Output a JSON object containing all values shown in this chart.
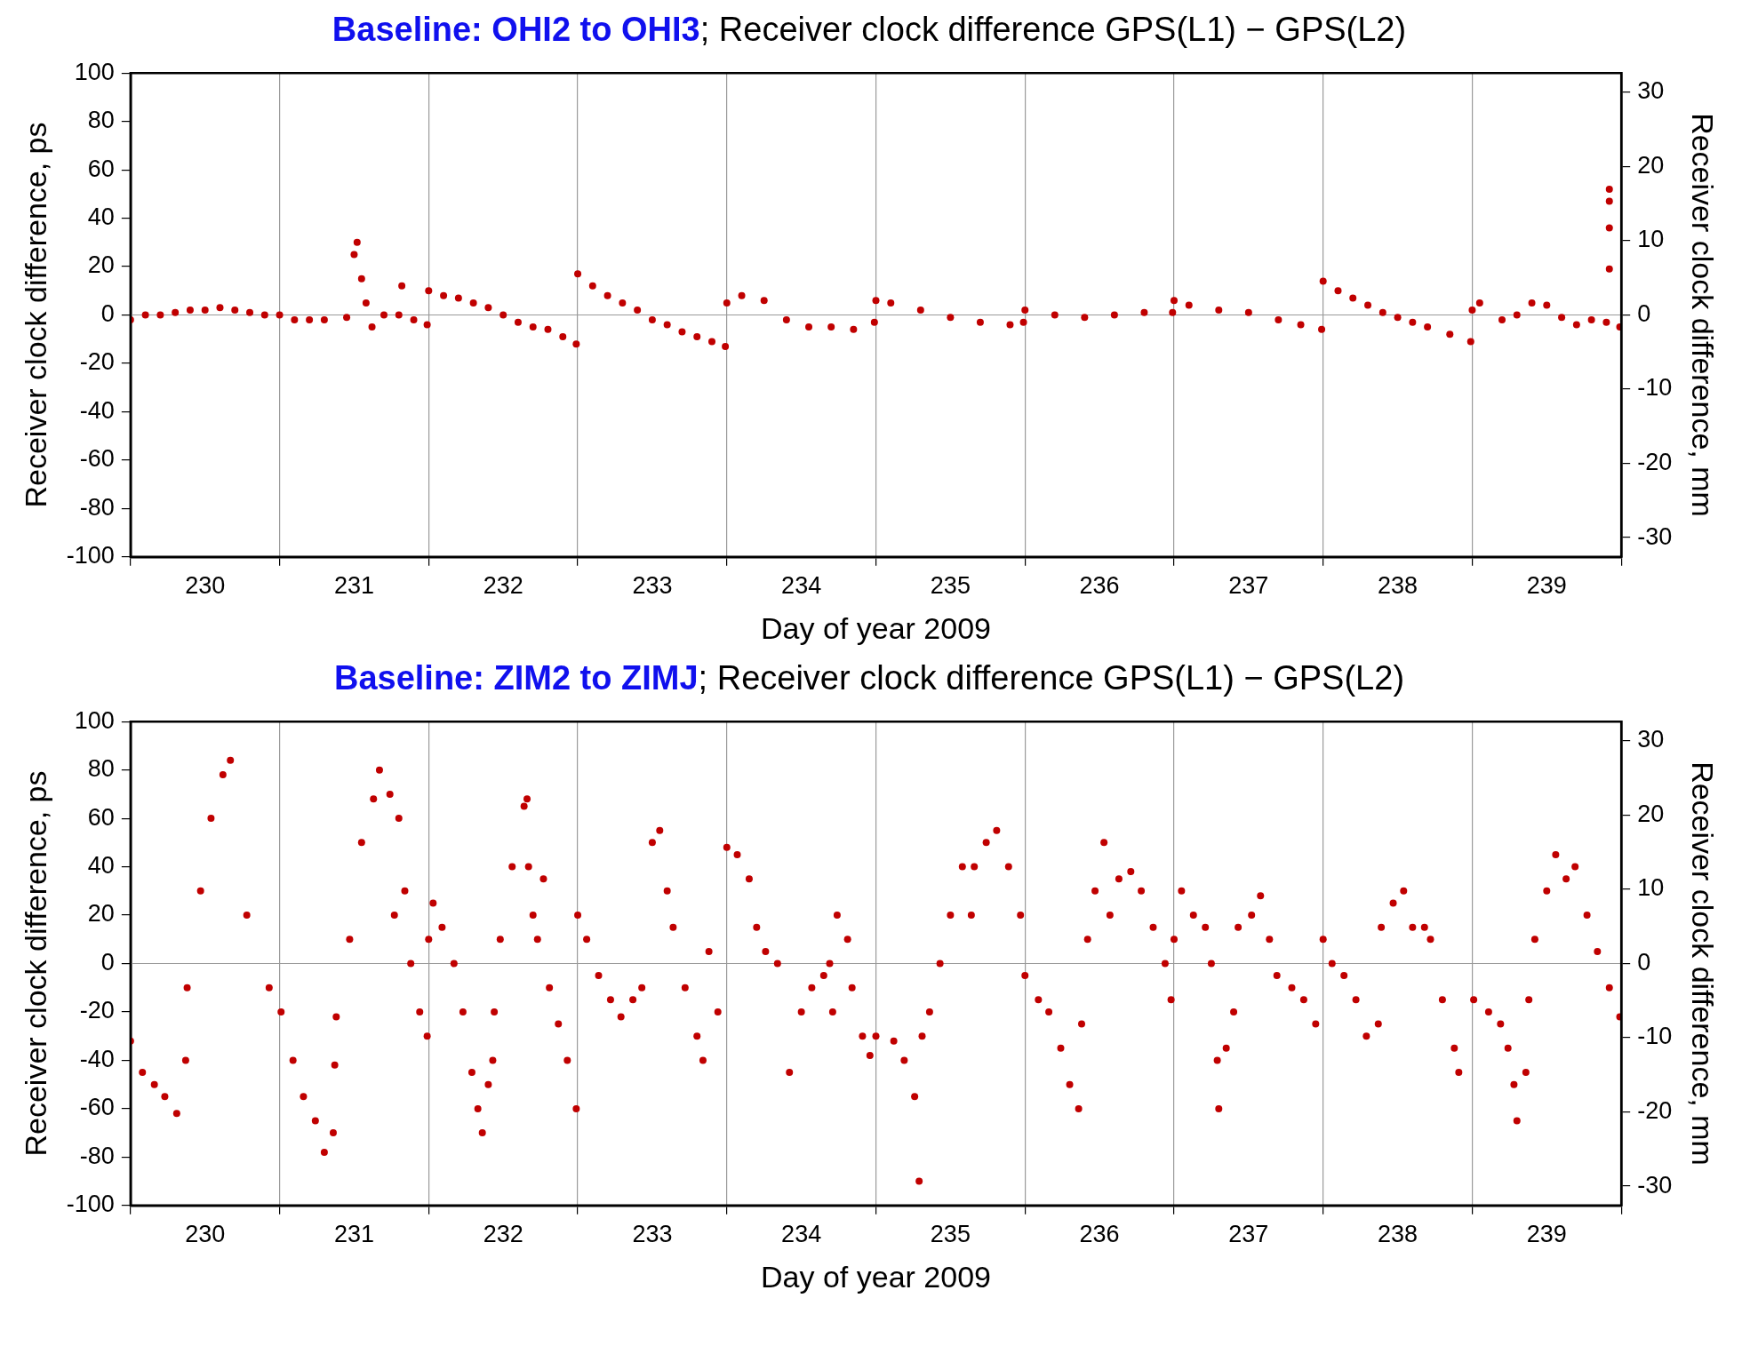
{
  "chart_data": [
    {
      "type": "scatter",
      "title": "Baseline: OHI2 to OHI3; Receiver clock difference GPS(L1) − GPS(L2)",
      "xlabel": "Day of year 2009",
      "ylabel": "Receiver clock difference, ps",
      "y2label": "Receiver clock difference, mm",
      "xlim": [
        230,
        240
      ],
      "xticks": [
        {
          "value": 230,
          "label": null
        },
        {
          "value": 230.5,
          "label": "230"
        },
        {
          "value": 231,
          "label": null
        },
        {
          "value": 231.5,
          "label": "231"
        },
        {
          "value": 232,
          "label": null
        },
        {
          "value": 232.5,
          "label": "232"
        },
        {
          "value": 233,
          "label": null
        },
        {
          "value": 233.5,
          "label": "233"
        },
        {
          "value": 234,
          "label": null
        },
        {
          "value": 234.5,
          "label": "234"
        },
        {
          "value": 235,
          "label": null
        },
        {
          "value": 235.5,
          "label": "235"
        },
        {
          "value": 236,
          "label": null
        },
        {
          "value": 236.5,
          "label": "236"
        },
        {
          "value": 237,
          "label": null
        },
        {
          "value": 237.5,
          "label": "237"
        },
        {
          "value": 238,
          "label": null
        },
        {
          "value": 238.5,
          "label": "238"
        },
        {
          "value": 239,
          "label": null
        },
        {
          "value": 239.5,
          "label": "239"
        },
        {
          "value": 240,
          "label": null
        }
      ],
      "ylim": [
        -100,
        100
      ],
      "yticks": [
        -100,
        -80,
        -60,
        -40,
        -20,
        0,
        20,
        40,
        60,
        80,
        100
      ],
      "y2lim": [
        -32.6,
        32.6
      ],
      "y2ticks": [
        -30,
        -20,
        -10,
        0,
        10,
        20,
        30
      ],
      "grid": "x",
      "marker": "circle",
      "ref_lines": [
        {
          "axis": "y",
          "value": 0,
          "color": "#999999"
        }
      ],
      "series": [
        {
          "color": "#c00000",
          "x": [
            230.0,
            230.1,
            230.2,
            230.3,
            230.4,
            230.5,
            230.6,
            230.7,
            230.8,
            230.9,
            231.0,
            231.1,
            231.2,
            231.3,
            231.45,
            231.5,
            231.52,
            231.55,
            231.58,
            231.62,
            231.7,
            231.8,
            231.82,
            231.9,
            231.99,
            232.0,
            232.1,
            232.2,
            232.3,
            232.4,
            232.5,
            232.6,
            232.7,
            232.8,
            232.9,
            232.99,
            233.0,
            233.1,
            233.2,
            233.3,
            233.4,
            233.5,
            233.6,
            233.7,
            233.8,
            233.9,
            233.99,
            234.0,
            234.1,
            234.25,
            234.4,
            234.55,
            234.7,
            234.85,
            234.99,
            235.0,
            235.1,
            235.3,
            235.5,
            235.7,
            235.9,
            235.99,
            236.0,
            236.2,
            236.4,
            236.6,
            236.8,
            236.99,
            237.0,
            237.1,
            237.3,
            237.5,
            237.7,
            237.85,
            237.99,
            238.0,
            238.1,
            238.2,
            238.3,
            238.4,
            238.5,
            238.6,
            238.7,
            238.85,
            238.99,
            239.0,
            239.05,
            239.2,
            239.3,
            239.4,
            239.5,
            239.6,
            239.7,
            239.8,
            239.9,
            239.92,
            239.92,
            239.92,
            239.92,
            239.99
          ],
          "values": [
            -2,
            0,
            0,
            1,
            2,
            2,
            3,
            2,
            1,
            0,
            0,
            -2,
            -2,
            -2,
            -1,
            25,
            30,
            15,
            5,
            -5,
            0,
            0,
            12,
            -2,
            -4,
            10,
            8,
            7,
            5,
            3,
            0,
            -3,
            -5,
            -6,
            -9,
            -12,
            17,
            12,
            8,
            5,
            2,
            -2,
            -4,
            -7,
            -9,
            -11,
            -13,
            5,
            8,
            6,
            -2,
            -5,
            -5,
            -6,
            -3,
            6,
            5,
            2,
            -1,
            -3,
            -4,
            -3,
            2,
            0,
            -1,
            0,
            1,
            1,
            6,
            4,
            2,
            1,
            -2,
            -4,
            -6,
            14,
            10,
            7,
            4,
            1,
            -1,
            -3,
            -5,
            -8,
            -11,
            2,
            5,
            -2,
            0,
            5,
            4,
            -1,
            -4,
            -2,
            -3,
            52,
            47,
            36,
            19,
            -5
          ]
        }
      ]
    },
    {
      "type": "scatter",
      "title": "Baseline: ZIM2 to ZIMJ; Receiver clock difference GPS(L1) − GPS(L2)",
      "xlabel": "Day of year 2009",
      "ylabel": "Receiver clock difference, ps",
      "y2label": "Receiver clock difference, mm",
      "xlim": [
        230,
        240
      ],
      "xticks": [
        {
          "value": 230,
          "label": null
        },
        {
          "value": 230.5,
          "label": "230"
        },
        {
          "value": 231,
          "label": null
        },
        {
          "value": 231.5,
          "label": "231"
        },
        {
          "value": 232,
          "label": null
        },
        {
          "value": 232.5,
          "label": "232"
        },
        {
          "value": 233,
          "label": null
        },
        {
          "value": 233.5,
          "label": "233"
        },
        {
          "value": 234,
          "label": null
        },
        {
          "value": 234.5,
          "label": "234"
        },
        {
          "value": 235,
          "label": null
        },
        {
          "value": 235.5,
          "label": "235"
        },
        {
          "value": 236,
          "label": null
        },
        {
          "value": 236.5,
          "label": "236"
        },
        {
          "value": 237,
          "label": null
        },
        {
          "value": 237.5,
          "label": "237"
        },
        {
          "value": 238,
          "label": null
        },
        {
          "value": 238.5,
          "label": "238"
        },
        {
          "value": 239,
          "label": null
        },
        {
          "value": 239.5,
          "label": "239"
        },
        {
          "value": 240,
          "label": null
        }
      ],
      "ylim": [
        -100,
        100
      ],
      "yticks": [
        -100,
        -80,
        -60,
        -40,
        -20,
        0,
        20,
        40,
        60,
        80,
        100
      ],
      "y2lim": [
        -32.6,
        32.6
      ],
      "y2ticks": [
        -30,
        -20,
        -10,
        0,
        10,
        20,
        30
      ],
      "grid": "x",
      "marker": "circle",
      "ref_lines": [
        {
          "axis": "y",
          "value": 0,
          "color": "#999999"
        }
      ],
      "series": [
        {
          "color": "#c00000",
          "x": [
            230.0,
            230.08,
            230.16,
            230.23,
            230.31,
            230.37,
            230.38,
            230.47,
            230.54,
            230.62,
            230.67,
            230.78,
            230.93,
            231.01,
            231.09,
            231.16,
            231.24,
            231.3,
            231.36,
            231.37,
            231.38,
            231.47,
            231.55,
            231.63,
            231.67,
            231.74,
            231.77,
            231.8,
            231.84,
            231.88,
            231.94,
            231.99,
            232.0,
            232.03,
            232.09,
            232.17,
            232.23,
            232.29,
            232.33,
            232.36,
            232.4,
            232.43,
            232.44,
            232.48,
            232.56,
            232.64,
            232.66,
            232.67,
            232.7,
            232.73,
            232.77,
            232.81,
            232.87,
            232.93,
            232.99,
            233.0,
            233.06,
            233.14,
            233.22,
            233.29,
            233.37,
            233.43,
            233.5,
            233.55,
            233.6,
            233.64,
            233.72,
            233.8,
            233.84,
            233.88,
            233.94,
            234.0,
            234.07,
            234.15,
            234.2,
            234.26,
            234.34,
            234.42,
            234.5,
            234.57,
            234.65,
            234.69,
            234.71,
            234.74,
            234.81,
            234.84,
            234.91,
            234.96,
            235.0,
            235.12,
            235.19,
            235.26,
            235.29,
            235.31,
            235.36,
            235.43,
            235.5,
            235.58,
            235.64,
            235.66,
            235.74,
            235.81,
            235.89,
            235.97,
            236.0,
            236.09,
            236.16,
            236.24,
            236.3,
            236.36,
            236.38,
            236.42,
            236.47,
            236.53,
            236.57,
            236.63,
            236.71,
            236.78,
            236.86,
            236.94,
            236.98,
            237.0,
            237.05,
            237.13,
            237.21,
            237.25,
            237.29,
            237.3,
            237.35,
            237.4,
            237.43,
            237.52,
            237.58,
            237.64,
            237.69,
            237.79,
            237.87,
            237.95,
            238.0,
            238.06,
            238.14,
            238.22,
            238.29,
            238.37,
            238.39,
            238.47,
            238.54,
            238.6,
            238.68,
            238.72,
            238.8,
            238.88,
            238.91,
            239.01,
            239.11,
            239.19,
            239.24,
            239.28,
            239.3,
            239.36,
            239.38,
            239.42,
            239.5,
            239.56,
            239.63,
            239.69,
            239.77,
            239.84,
            239.92,
            239.99
          ],
          "values": [
            -32,
            -45,
            -50,
            -55,
            -62,
            -40,
            -10,
            30,
            60,
            78,
            84,
            20,
            -10,
            -20,
            -40,
            -55,
            -65,
            -78,
            -70,
            -42,
            -22,
            10,
            50,
            68,
            80,
            70,
            20,
            60,
            30,
            0,
            -20,
            -30,
            10,
            25,
            15,
            0,
            -20,
            -45,
            -60,
            -70,
            -50,
            -40,
            -20,
            10,
            40,
            65,
            68,
            40,
            20,
            10,
            35,
            -10,
            -25,
            -40,
            -60,
            20,
            10,
            -5,
            -15,
            -22,
            -15,
            -10,
            50,
            55,
            30,
            15,
            -10,
            -30,
            -40,
            5,
            -20,
            48,
            45,
            35,
            15,
            5,
            0,
            -45,
            -20,
            -10,
            -5,
            0,
            -20,
            20,
            10,
            -10,
            -30,
            -38,
            -30,
            -32,
            -40,
            -55,
            -90,
            -30,
            -20,
            0,
            20,
            40,
            20,
            40,
            50,
            55,
            40,
            20,
            -5,
            -15,
            -20,
            -35,
            -50,
            -60,
            -25,
            10,
            30,
            50,
            20,
            35,
            38,
            30,
            15,
            0,
            -15,
            10,
            30,
            20,
            15,
            0,
            -40,
            -60,
            -35,
            -20,
            15,
            20,
            28,
            10,
            -5,
            -10,
            -15,
            -25,
            10,
            0,
            -5,
            -15,
            -30,
            -25,
            15,
            25,
            30,
            15,
            15,
            10,
            -15,
            -35,
            -45,
            -15,
            -20,
            -25,
            -35,
            -50,
            -65,
            -45,
            -15,
            10,
            30,
            45,
            35,
            40,
            20,
            5,
            -10,
            -22
          ]
        }
      ]
    }
  ]
}
